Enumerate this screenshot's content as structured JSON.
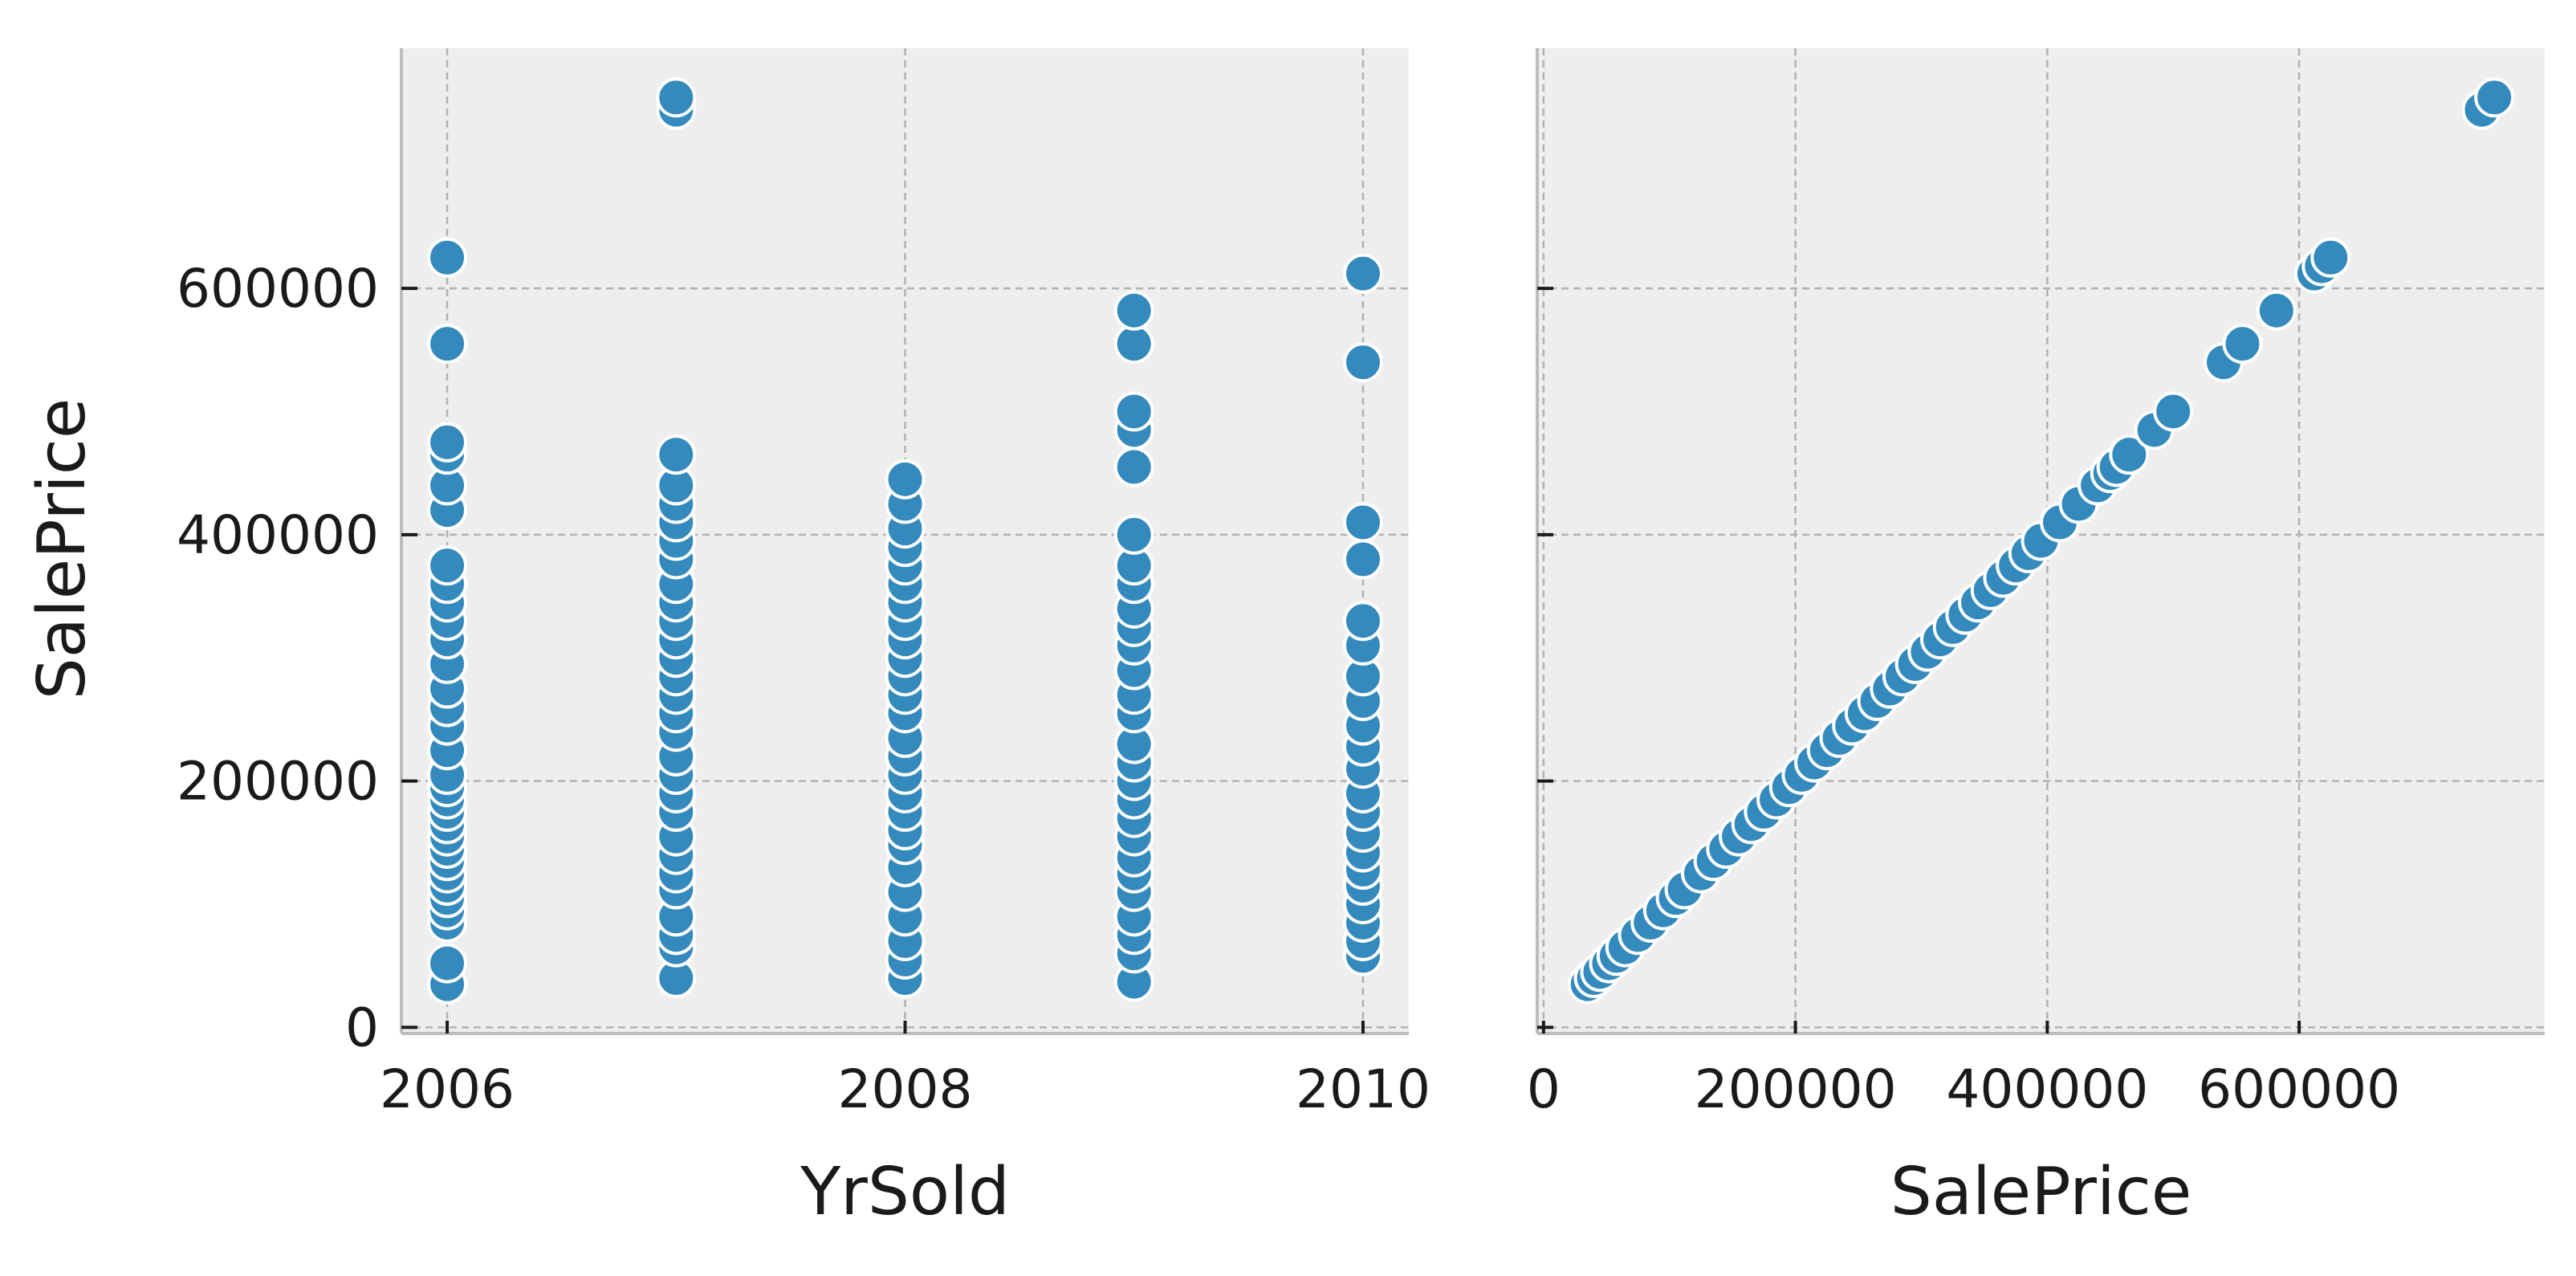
{
  "colors": {
    "panel_bg": "#eeeeee",
    "grid": "#b2b2b2",
    "spine": "#bcbcbc",
    "point_fill": "#348abd",
    "point_edge": "#ffffff",
    "text": "#1a1a1a"
  },
  "chart_data": [
    {
      "type": "scatter",
      "xlabel": "YrSold",
      "ylabel": "SalePrice",
      "xlim": [
        2005.8,
        2010.2
      ],
      "ylim": [
        -5000,
        795000
      ],
      "xticks": [
        2006,
        2008,
        2010
      ],
      "yticks": [
        0,
        200000,
        400000,
        600000
      ],
      "grid": true,
      "points_by_x": {
        "2006": [
          35000,
          52000,
          85000,
          95000,
          105000,
          115000,
          125000,
          135000,
          145000,
          155000,
          165000,
          175000,
          185000,
          195000,
          205000,
          225000,
          245000,
          260000,
          275000,
          295000,
          315000,
          330000,
          345000,
          360000,
          375000,
          420000,
          440000,
          465000,
          475000,
          555000,
          625000
        ],
        "2007": [
          40000,
          65000,
          75000,
          90000,
          112000,
          125000,
          140000,
          155000,
          175000,
          190000,
          205000,
          220000,
          240000,
          255000,
          270000,
          285000,
          300000,
          315000,
          330000,
          345000,
          360000,
          380000,
          395000,
          410000,
          425000,
          440000,
          465000,
          745000,
          755000
        ],
        "2008": [
          40000,
          55000,
          70000,
          90000,
          110000,
          130000,
          148000,
          160000,
          175000,
          190000,
          205000,
          220000,
          235000,
          255000,
          270000,
          285000,
          300000,
          315000,
          330000,
          345000,
          360000,
          375000,
          390000,
          405000,
          425000,
          445000
        ],
        "2009": [
          37000,
          60000,
          75000,
          90000,
          110000,
          125000,
          138000,
          155000,
          170000,
          185000,
          200000,
          215000,
          230000,
          255000,
          270000,
          290000,
          310000,
          325000,
          340000,
          360000,
          375000,
          400000,
          455000,
          485000,
          500000,
          555000,
          582000
        ],
        "2010": [
          58000,
          70000,
          85000,
          100000,
          115000,
          128000,
          142000,
          158000,
          175000,
          190000,
          210000,
          228000,
          245000,
          265000,
          285000,
          310000,
          330000,
          380000,
          410000,
          540000,
          612000
        ]
      }
    },
    {
      "type": "scatter",
      "xlabel": "SalePrice",
      "ylabel": "",
      "xlim": [
        -5000,
        795000
      ],
      "ylim": [
        -5000,
        795000
      ],
      "xticks": [
        0,
        200000,
        400000,
        600000
      ],
      "yticks": [
        0,
        200000,
        400000,
        600000
      ],
      "grid": true,
      "values": [
        35000,
        40000,
        45000,
        52000,
        58000,
        65000,
        75000,
        85000,
        95000,
        105000,
        112000,
        125000,
        135000,
        145000,
        155000,
        165000,
        175000,
        185000,
        195000,
        205000,
        215000,
        225000,
        235000,
        245000,
        255000,
        265000,
        275000,
        285000,
        295000,
        305000,
        315000,
        325000,
        335000,
        345000,
        355000,
        365000,
        375000,
        385000,
        395000,
        410000,
        425000,
        440000,
        450000,
        455000,
        465000,
        485000,
        500000,
        540000,
        555000,
        582000,
        612000,
        618000,
        625000,
        745000,
        755000
      ]
    }
  ]
}
